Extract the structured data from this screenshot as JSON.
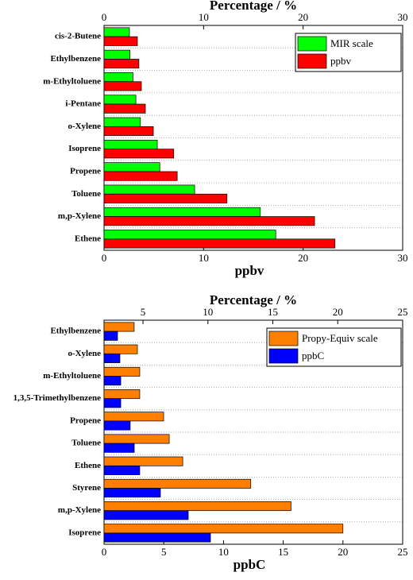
{
  "chart_data": [
    {
      "type": "bar",
      "orientation": "horizontal",
      "x2label": "Percentage / %",
      "xlabel": "ppbv",
      "categories": [
        "cis-2-Butene",
        "Ethylbenzene",
        "m-Ethyltoluene",
        "i-Pentane",
        "o-Xylene",
        "Isoprene",
        "Propene",
        "Toluene",
        "m,p-Xylene",
        "Ethene"
      ],
      "series": [
        {
          "name": "MIR scale",
          "color": "#00ff00",
          "axis": "x2",
          "values": [
            2.55,
            2.6,
            2.9,
            3.2,
            3.65,
            5.35,
            5.6,
            9.1,
            15.7,
            17.25
          ]
        },
        {
          "name": "ppbv",
          "color": "#ff0000",
          "axis": "x",
          "values": [
            3.35,
            3.5,
            3.75,
            4.15,
            4.95,
            7.0,
            7.35,
            12.35,
            21.15,
            23.2
          ]
        }
      ],
      "xlim": [
        0,
        30
      ],
      "xticks": [
        0,
        10,
        20,
        30
      ],
      "x2lim": [
        0,
        30
      ],
      "x2ticks": [
        0,
        10,
        20,
        30
      ],
      "grid": true,
      "legend": "upper right"
    },
    {
      "type": "bar",
      "orientation": "horizontal",
      "x2label": "Percentage / %",
      "xlabel": "ppbC",
      "categories": [
        "Ethylbenzene",
        "o-Xylene",
        "m-Ethyltoluene",
        "1,3,5-Trimethylbenzene",
        "Propene",
        "Toluene",
        "Ethene",
        "Styrene",
        "m,p-Xylene",
        "Isoprene"
      ],
      "series": [
        {
          "name": "Propy-Equiv scale",
          "color": "#ff8000",
          "axis": "x2",
          "values": [
            4.32,
            4.57,
            4.75,
            4.75,
            6.59,
            7.02,
            8.06,
            13.3,
            16.4,
            20.4
          ]
        },
        {
          "name": "ppbC",
          "color": "#0000ff",
          "axis": "x",
          "values": [
            1.13,
            1.33,
            1.4,
            1.4,
            2.19,
            2.53,
            2.99,
            4.72,
            7.05,
            8.91
          ]
        }
      ],
      "xlim": [
        0,
        25
      ],
      "xticks": [
        0,
        5,
        10,
        15,
        20,
        25
      ],
      "x2lim": [
        2,
        25
      ],
      "x2ticks": [
        5,
        10,
        15,
        20,
        25
      ],
      "grid": true,
      "legend": "upper right"
    }
  ]
}
